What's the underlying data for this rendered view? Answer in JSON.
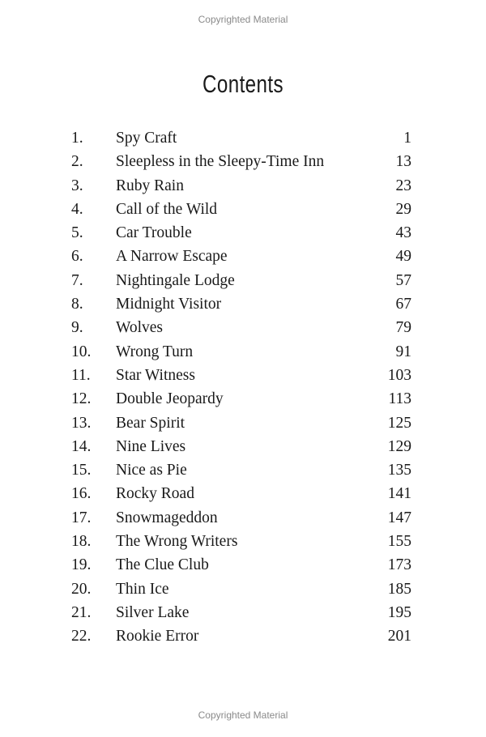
{
  "watermark": "Copyrighted Material",
  "title": "Contents",
  "entries": [
    {
      "num": "1.",
      "title": "Spy Craft",
      "page": "1"
    },
    {
      "num": "2.",
      "title": "Sleepless in the Sleepy-Time Inn",
      "page": "13"
    },
    {
      "num": "3.",
      "title": "Ruby Rain",
      "page": "23"
    },
    {
      "num": "4.",
      "title": "Call of the Wild",
      "page": "29"
    },
    {
      "num": "5.",
      "title": "Car Trouble",
      "page": "43"
    },
    {
      "num": "6.",
      "title": "A Narrow Escape",
      "page": "49"
    },
    {
      "num": "7.",
      "title": "Nightingale Lodge",
      "page": "57"
    },
    {
      "num": "8.",
      "title": "Midnight Visitor",
      "page": "67"
    },
    {
      "num": "9.",
      "title": "Wolves",
      "page": "79"
    },
    {
      "num": "10.",
      "title": "Wrong Turn",
      "page": "91"
    },
    {
      "num": "11.",
      "title": "Star Witness",
      "page": "103"
    },
    {
      "num": "12.",
      "title": "Double Jeopardy",
      "page": "113"
    },
    {
      "num": "13.",
      "title": "Bear Spirit",
      "page": "125"
    },
    {
      "num": "14.",
      "title": "Nine Lives",
      "page": "129"
    },
    {
      "num": "15.",
      "title": "Nice as Pie",
      "page": "135"
    },
    {
      "num": "16.",
      "title": "Rocky Road",
      "page": "141"
    },
    {
      "num": "17.",
      "title": "Snowmageddon",
      "page": "147"
    },
    {
      "num": "18.",
      "title": "The Wrong Writers",
      "page": "155"
    },
    {
      "num": "19.",
      "title": "The Clue Club",
      "page": "173"
    },
    {
      "num": "20.",
      "title": "Thin Ice",
      "page": "185"
    },
    {
      "num": "21.",
      "title": "Silver Lake",
      "page": "195"
    },
    {
      "num": "22.",
      "title": "Rookie Error",
      "page": "201"
    }
  ]
}
